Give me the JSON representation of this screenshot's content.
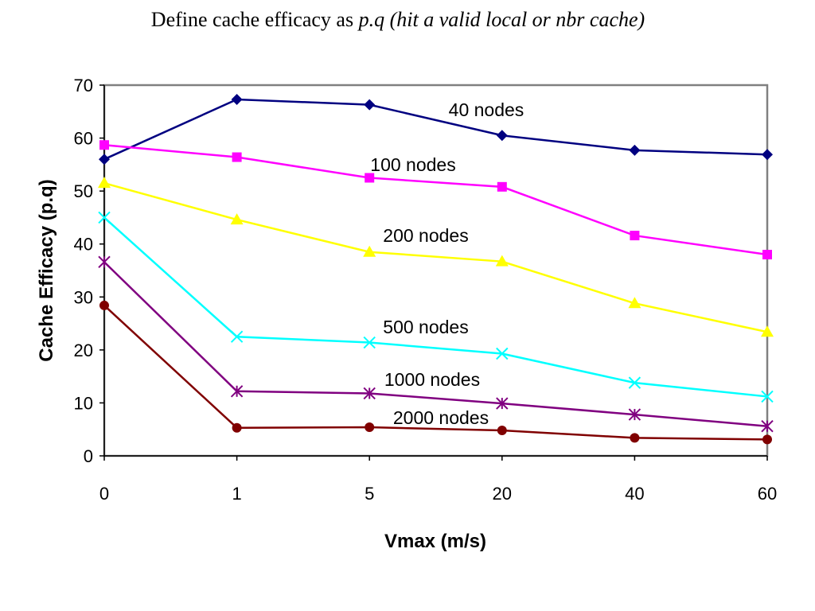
{
  "slide": {
    "title_plain": "Define cache efficacy as ",
    "title_italic": "p.q (hit a valid local or nbr cache)"
  },
  "chart_data": {
    "type": "line",
    "title": "",
    "xlabel": "Vmax (m/s)",
    "ylabel": "Cache Efficacy (p.q)",
    "categories": [
      "0",
      "1",
      "5",
      "20",
      "40",
      "60"
    ],
    "ylim": [
      0,
      70
    ],
    "yticks": [
      0,
      10,
      20,
      30,
      40,
      50,
      60,
      70
    ],
    "grid": false,
    "legend": "inline labels",
    "series": [
      {
        "name": "40 nodes",
        "color": "#000080",
        "marker": "diamond",
        "values": [
          56,
          67.3,
          66.3,
          60.5,
          57.7,
          56.9
        ]
      },
      {
        "name": "100 nodes",
        "color": "#ff00ff",
        "marker": "square",
        "values": [
          58.7,
          56.4,
          52.5,
          50.8,
          41.6,
          38
        ]
      },
      {
        "name": "200 nodes",
        "color": "#ffff00",
        "marker": "triangle",
        "values": [
          51.5,
          44.6,
          38.5,
          36.7,
          28.8,
          23.4
        ]
      },
      {
        "name": "500 nodes",
        "color": "#00ffff",
        "marker": "x",
        "values": [
          45,
          22.5,
          21.4,
          19.3,
          13.8,
          11.2
        ]
      },
      {
        "name": "1000 nodes",
        "color": "#800080",
        "marker": "star",
        "values": [
          36.6,
          12.2,
          11.8,
          9.9,
          7.8,
          5.6
        ]
      },
      {
        "name": "2000 nodes",
        "color": "#800000",
        "marker": "circle",
        "values": [
          28.4,
          5.3,
          5.4,
          4.8,
          3.4,
          3.1
        ]
      }
    ]
  }
}
